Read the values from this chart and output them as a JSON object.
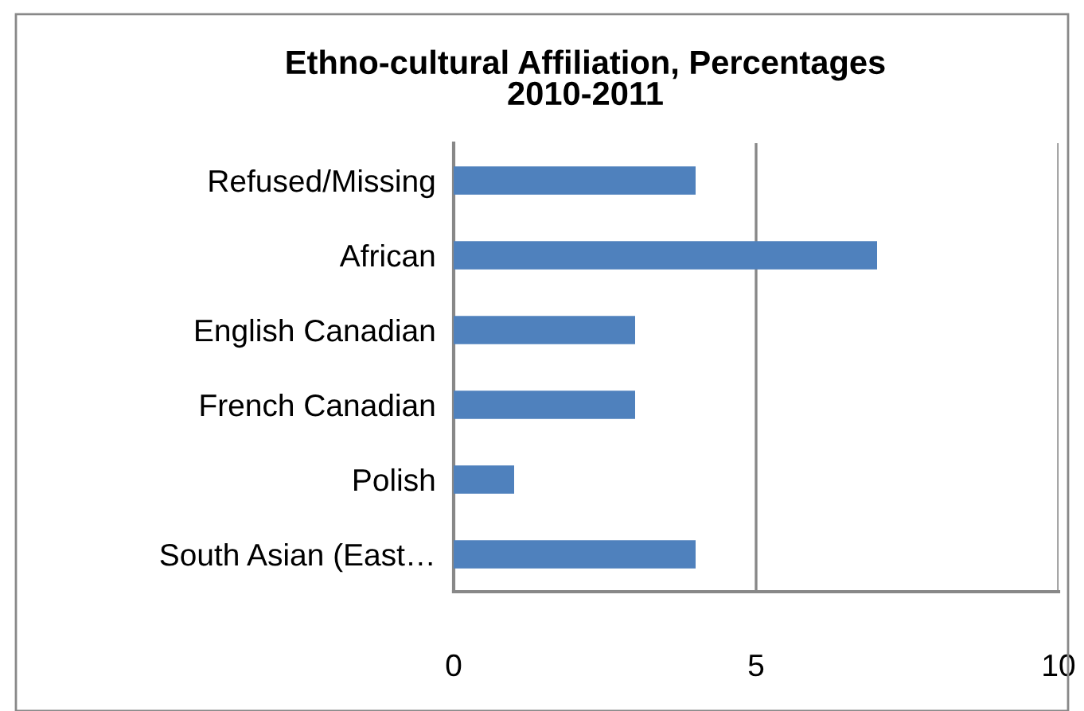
{
  "chart_data": {
    "type": "bar",
    "orientation": "horizontal",
    "title": "Ethno-cultural Affiliation, Percentages\n2010-2011",
    "categories": [
      "Refused/Missing",
      "African",
      "English Canadian",
      "French Canadian",
      "Polish",
      "South Asian (East…"
    ],
    "values": [
      4,
      7,
      3,
      3,
      1,
      4
    ],
    "color": "#4f81bd",
    "xlim": [
      0,
      10
    ],
    "xticks": [
      0,
      5,
      10
    ],
    "grid": "x"
  }
}
